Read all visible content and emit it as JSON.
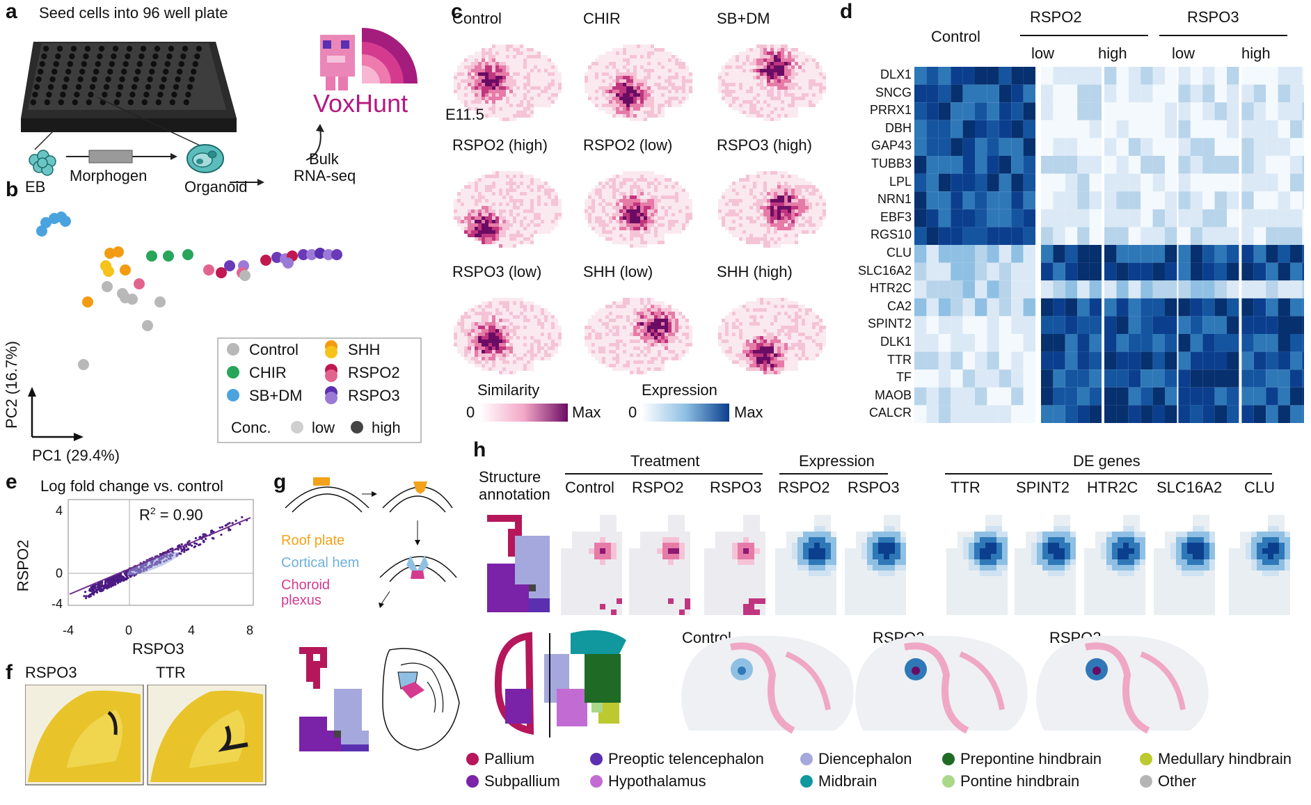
{
  "panel_labels": [
    "a",
    "b",
    "c",
    "d",
    "e",
    "f",
    "g",
    "h"
  ],
  "panel_a": {
    "title": "Seed cells into 96 well plate",
    "eb": "EB",
    "morphogen": "Morphogen",
    "organoid": "Organoid",
    "bulk": "Bulk",
    "rnaseq": "RNA-seq",
    "logo": "VoxHunt"
  },
  "panel_b": {
    "xlabel": "PC1 (29.4%)",
    "ylabel": "PC2 (16.7%)",
    "legend": {
      "control": "Control",
      "chir": "CHIR",
      "sbdm": "SB+DM",
      "shh": "SHH",
      "rspo2": "RSPO2",
      "rspo3": "RSPO3",
      "conc": "Conc.",
      "low": "low",
      "high": "high"
    },
    "colors": {
      "control": "#b8b8b8",
      "chir": "#27a55a",
      "sbdm": "#4aa3df",
      "shh": "#f39c12",
      "rspo2": "#c0184f",
      "rspo3": "#6a3ab8"
    }
  },
  "panel_c": {
    "titles": [
      "Control",
      "CHIR",
      "SB+DM",
      "RSPO2 (high)",
      "RSPO2 (low)",
      "RSPO3 (high)",
      "RSPO3 (low)",
      "SHH (low)",
      "SHH (high)"
    ],
    "stage": "E11.5",
    "similarity": "Similarity",
    "expression": "Expression",
    "zero": "0",
    "max": "Max"
  },
  "panel_d": {
    "control": "Control",
    "rspo2": "RSPO2",
    "rspo3": "RSPO3",
    "low": "low",
    "high": "high",
    "genes": [
      "DLX1",
      "SNCG",
      "PRRX1",
      "DBH",
      "GAP43",
      "TUBB3",
      "LPL",
      "NRN1",
      "EBF3",
      "RGS10",
      "CLU",
      "SLC16A2",
      "HTR2C",
      "CA2",
      "SPINT2",
      "DLK1",
      "TTR",
      "TF",
      "MAOB",
      "CALCR"
    ]
  },
  "panel_e": {
    "title": "Log fold change vs. control",
    "r2": "R",
    "r2sup": "2",
    "r2val": " = 0.90",
    "xlabel": "RSPO3",
    "ylabel": "RSPO2",
    "xticks": [
      "-4",
      "0",
      "4",
      "8"
    ],
    "yticks": [
      "4",
      "0",
      "-4"
    ]
  },
  "panel_f": {
    "left": "RSPO3",
    "right": "TTR"
  },
  "panel_g": {
    "roof": "Roof plate",
    "hem": "Cortical hem",
    "choroid1": "Choroid",
    "choroid2": "plexus"
  },
  "panel_h": {
    "struct1": "Structure",
    "struct2": "annotation",
    "treatment": "Treatment",
    "expression": "Expression",
    "degenes": "DE genes",
    "cols": [
      "Control",
      "RSPO2",
      "RSPO3",
      "RSPO2",
      "RSPO3",
      "TTR",
      "SPINT2",
      "HTR2C",
      "SLC16A2",
      "CLU"
    ],
    "bottom": [
      "Control",
      "RSPO2",
      "RSPO3"
    ],
    "legend": [
      {
        "label": "Pallium",
        "color": "#b5175a"
      },
      {
        "label": "Subpallium",
        "color": "#7a22a8"
      },
      {
        "label": "Preoptic telencephalon",
        "color": "#5a2fb0"
      },
      {
        "label": "Hypothalamus",
        "color": "#c26cd3"
      },
      {
        "label": "Diencephalon",
        "color": "#a4a8dc"
      },
      {
        "label": "Midbrain",
        "color": "#11979e"
      },
      {
        "label": "Prepontine hindbrain",
        "color": "#1f6b26"
      },
      {
        "label": "Pontine hindbrain",
        "color": "#a9d88a"
      },
      {
        "label": "Medullary hindbrain",
        "color": "#bcc92f"
      },
      {
        "label": "Other",
        "color": "#b4b4b4"
      }
    ]
  }
}
